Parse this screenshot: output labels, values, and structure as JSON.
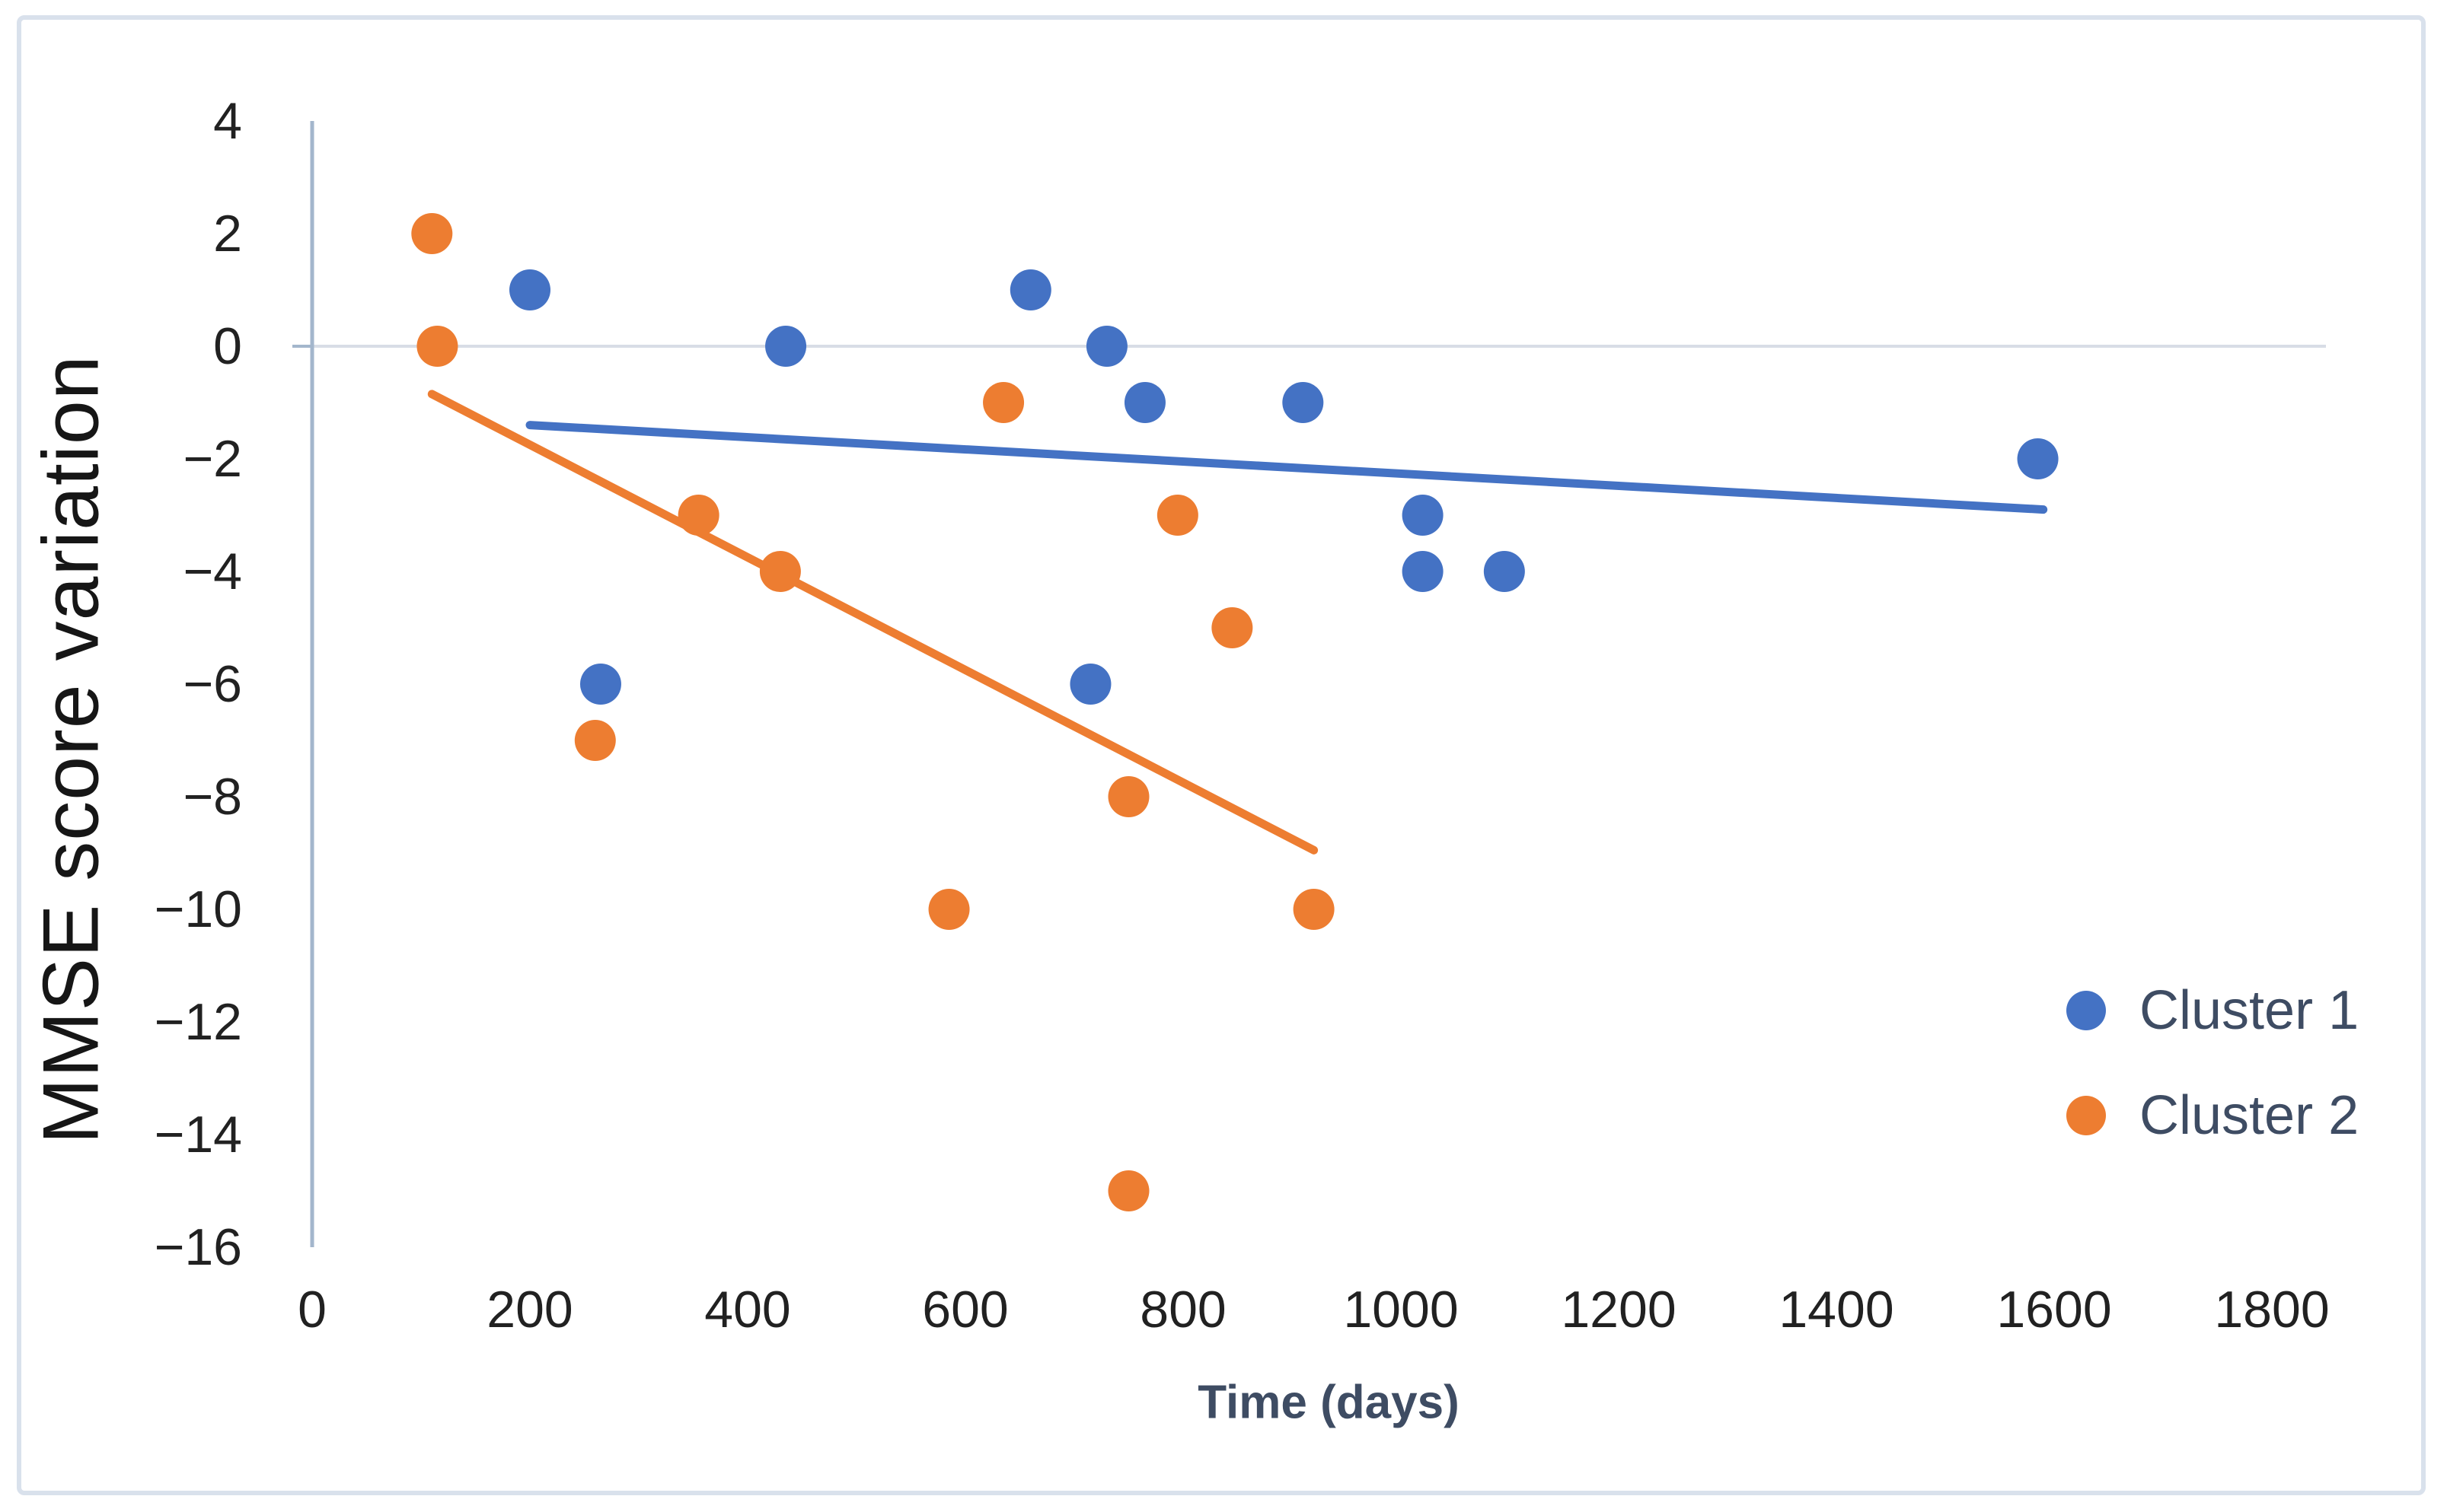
{
  "figure": {
    "background": "#ffffff",
    "frame_border_color": "#d9e1ec",
    "axis_line_color": "#a3b6cc",
    "gridline_color": "#d8dde6"
  },
  "axes": {
    "x_label": "Time (days)",
    "y_label": "MMSE score variation"
  },
  "legend": {
    "position": "right-middle",
    "items": [
      {
        "label": "Cluster 1",
        "color": "#4472C4"
      },
      {
        "label": "Cluster 2",
        "color": "#ED7D31"
      }
    ]
  },
  "chart_data": {
    "type": "scatter",
    "title": "",
    "xlabel": "Time (days)",
    "ylabel": "MMSE score variation",
    "xlim": [
      0,
      1850
    ],
    "ylim": [
      -16,
      4
    ],
    "x_ticks": [
      0,
      200,
      400,
      600,
      800,
      1000,
      1200,
      1400,
      1600,
      1800
    ],
    "y_ticks": [
      4,
      2,
      0,
      -2,
      -4,
      -6,
      -8,
      -10,
      -12,
      -14,
      -16
    ],
    "grid": "single horizontal gridline at y=0 only",
    "legend_position": "right-middle",
    "marker_radius_px": 27,
    "series": [
      {
        "name": "Cluster 1",
        "color": "#4472C4",
        "points": [
          [
            200,
            1
          ],
          [
            265,
            -6
          ],
          [
            435,
            0
          ],
          [
            660,
            1
          ],
          [
            715,
            -6
          ],
          [
            730,
            0
          ],
          [
            765,
            -1
          ],
          [
            910,
            -1
          ],
          [
            1020,
            -3
          ],
          [
            1020,
            -4
          ],
          [
            1095,
            -4
          ],
          [
            1585,
            -2
          ]
        ],
        "trendline": {
          "x1": 200,
          "y1": -1.4,
          "x2": 1590,
          "y2": -2.9
        }
      },
      {
        "name": "Cluster 2",
        "color": "#ED7D31",
        "points": [
          [
            110,
            2
          ],
          [
            115,
            0
          ],
          [
            260,
            -7
          ],
          [
            355,
            -3
          ],
          [
            430,
            -4
          ],
          [
            585,
            -10
          ],
          [
            635,
            -1
          ],
          [
            750,
            -8
          ],
          [
            750,
            -15
          ],
          [
            795,
            -3
          ],
          [
            845,
            -5
          ],
          [
            920,
            -10
          ]
        ],
        "trendline": {
          "x1": 110,
          "y1": -0.85,
          "x2": 920,
          "y2": -8.95
        }
      }
    ]
  }
}
